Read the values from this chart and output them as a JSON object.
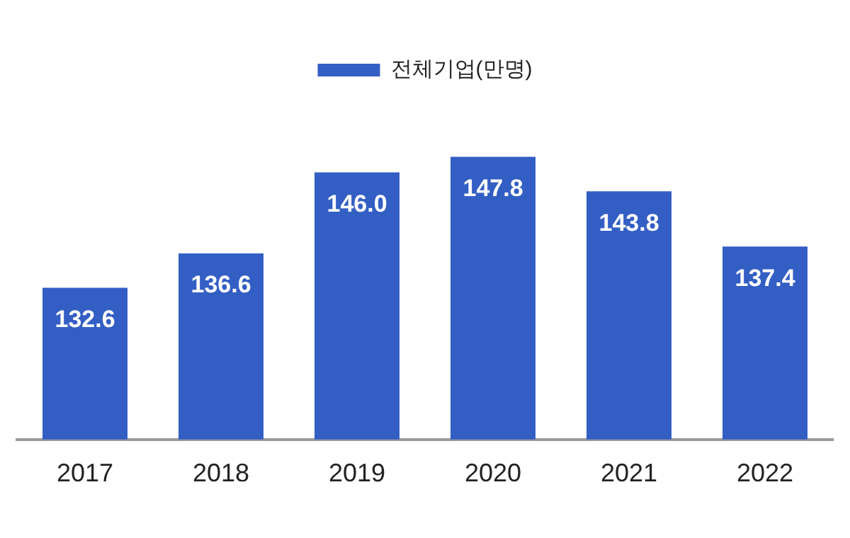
{
  "chart_data": {
    "type": "bar",
    "categories": [
      "2017",
      "2018",
      "2019",
      "2020",
      "2021",
      "2022"
    ],
    "series": [
      {
        "name": "전체기업(만명)",
        "color": "#335ec4",
        "values": [
          132.6,
          136.6,
          146.0,
          147.8,
          143.8,
          137.4
        ],
        "value_labels": [
          "132.6",
          "136.6",
          "146.0",
          "147.8",
          "143.8",
          "137.4"
        ]
      }
    ],
    "legend": "top",
    "grid": false,
    "tick_labels": "x"
  }
}
